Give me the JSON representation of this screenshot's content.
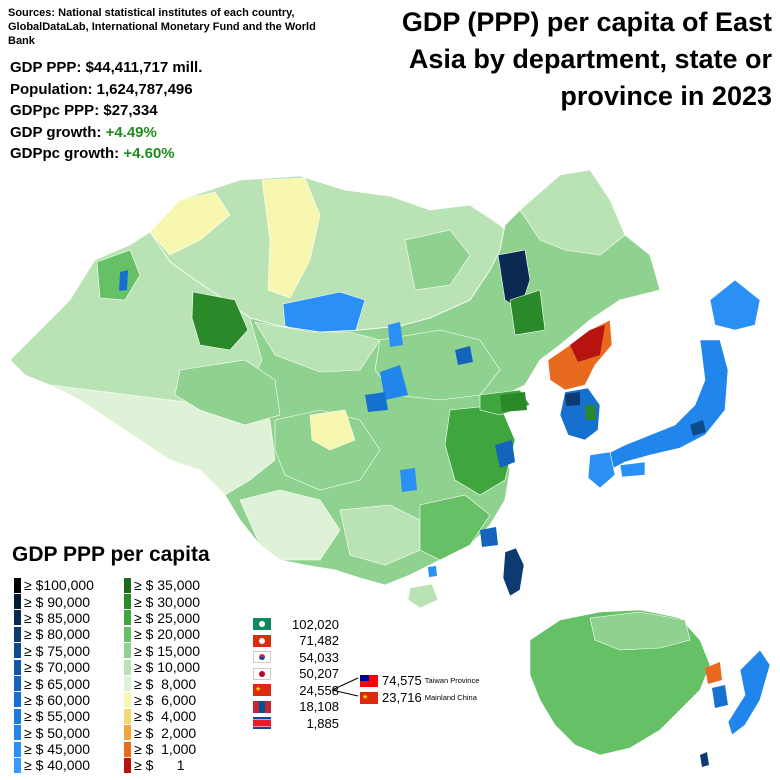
{
  "sources": "Sources: National statistical institutes of each country, GlobalDataLab, International Monetary Fund and the World Bank",
  "title": "GDP (PPP) per capita of East Asia by department, state or province in 2023",
  "stats": {
    "gdp_label": "GDP PPP:",
    "gdp_value": "$44,411,717 mill.",
    "pop_label": "Population:",
    "pop_value": "1,624,787,496",
    "gdppc_label": "GDPpc PPP:",
    "gdppc_value": "$27,334",
    "growth_label": "GDP growth:",
    "growth_value": "+4.49%",
    "pcgrowth_label": "GDPpc growth:",
    "pcgrowth_value": "+4.60%",
    "positive_color": "#1f8c1f"
  },
  "legend": {
    "title": "GDP PPP per capita",
    "left": [
      {
        "label": "≥ $100,000",
        "color": "#000000"
      },
      {
        "label": "≥ $ 90,000",
        "color": "#061a33"
      },
      {
        "label": "≥ $ 85,000",
        "color": "#0a2a52"
      },
      {
        "label": "≥ $ 80,000",
        "color": "#0d3a70"
      },
      {
        "label": "≥ $ 75,000",
        "color": "#0f4a8c"
      },
      {
        "label": "≥ $ 70,000",
        "color": "#1257a6"
      },
      {
        "label": "≥ $ 65,000",
        "color": "#1464bd"
      },
      {
        "label": "≥ $ 60,000",
        "color": "#1670d0"
      },
      {
        "label": "≥ $ 55,000",
        "color": "#1a7be0"
      },
      {
        "label": "≥ $ 50,000",
        "color": "#2186ec"
      },
      {
        "label": "≥ $ 45,000",
        "color": "#2b90f5"
      },
      {
        "label": "≥ $ 40,000",
        "color": "#3a9bff"
      }
    ],
    "right": [
      {
        "label": "≥ $ 35,000",
        "color": "#1b6b1b"
      },
      {
        "label": "≥ $ 30,000",
        "color": "#2a8a2a"
      },
      {
        "label": "≥ $ 25,000",
        "color": "#3fa53f"
      },
      {
        "label": "≥ $ 20,000",
        "color": "#66c066"
      },
      {
        "label": "≥ $ 15,000",
        "color": "#8fd28f"
      },
      {
        "label": "≥ $ 10,000",
        "color": "#b9e3b4"
      },
      {
        "label": "≥ $  8,000",
        "color": "#dff2d8"
      },
      {
        "label": "≥ $  6,000",
        "color": "#f7f7b0"
      },
      {
        "label": "≥ $  4,000",
        "color": "#f3d774"
      },
      {
        "label": "≥ $  2,000",
        "color": "#f0a63c"
      },
      {
        "label": "≥ $  1,000",
        "color": "#e86a1e"
      },
      {
        "label": "≥ $      1",
        "color": "#b8140f"
      }
    ]
  },
  "countries": [
    {
      "flag": "macau-flag",
      "value": "102,020"
    },
    {
      "flag": "hong-kong-flag",
      "value": "71,482"
    },
    {
      "flag": "south-korea-flag",
      "value": "54,033"
    },
    {
      "flag": "japan-flag",
      "value": "50,207"
    },
    {
      "flag": "china-flag",
      "value": "24,558"
    },
    {
      "flag": "mongolia-flag",
      "value": "18,108"
    },
    {
      "flag": "north-korea-flag",
      "value": "1,885"
    }
  ],
  "china_split": [
    {
      "flag": "taiwan-flag",
      "value": "74,575",
      "name": "Taiwan Province"
    },
    {
      "flag": "china-flag",
      "value": "23,716",
      "name": "Mainland China"
    }
  ]
}
